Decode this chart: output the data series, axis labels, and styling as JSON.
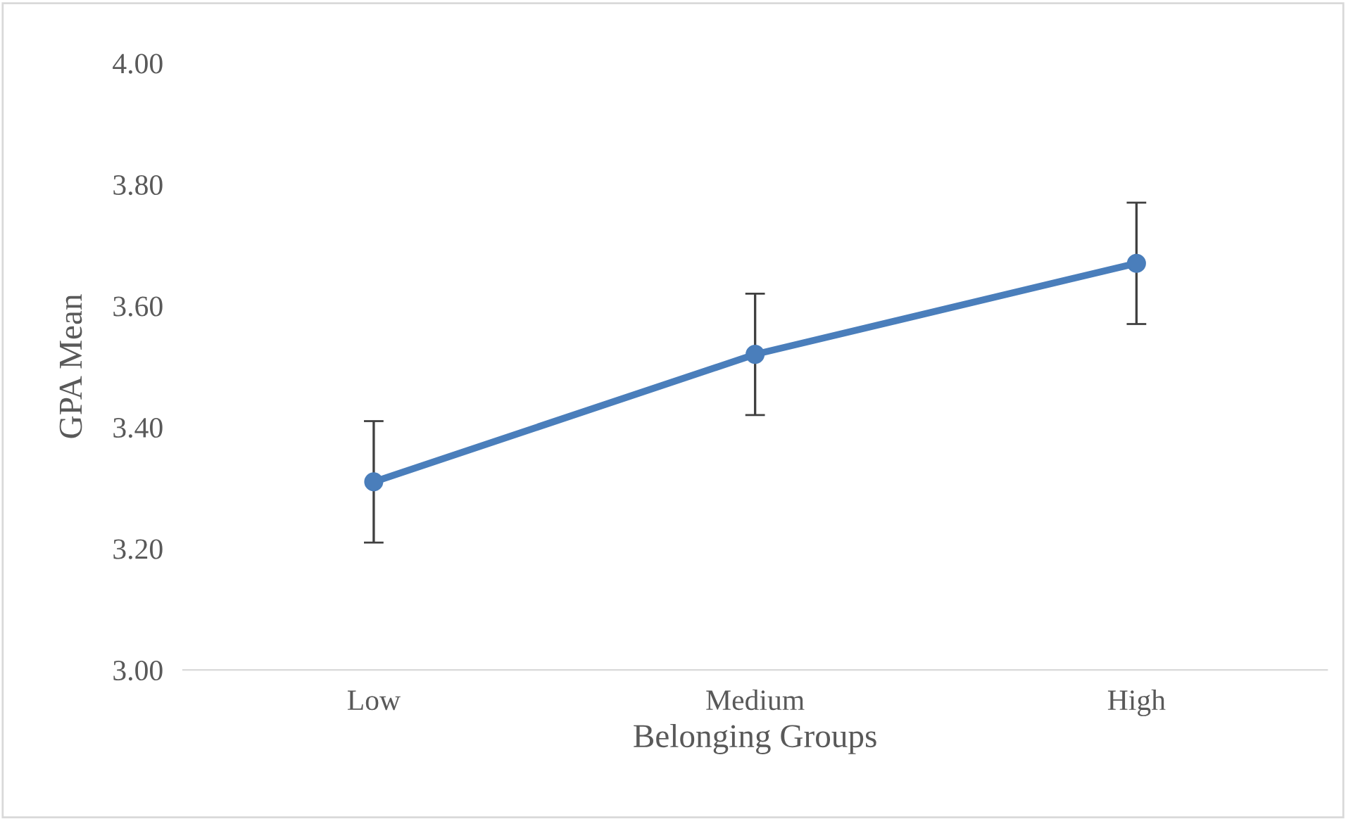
{
  "chart_data": {
    "type": "line",
    "xlabel": "Belonging Groups",
    "ylabel": "GPA Mean",
    "categories": [
      "Low",
      "Medium",
      "High"
    ],
    "series": [
      {
        "color": "#4a7ebb",
        "values": [
          3.31,
          3.52,
          3.67
        ],
        "errors": [
          0.1,
          0.1,
          0.1
        ]
      }
    ],
    "ylim": [
      3.0,
      4.0
    ],
    "yticks": [
      {
        "value": 3.0,
        "label": "3.00"
      },
      {
        "value": 3.2,
        "label": "3.20"
      },
      {
        "value": 3.4,
        "label": "3.40"
      },
      {
        "value": 3.6,
        "label": "3.60"
      },
      {
        "value": 3.8,
        "label": "3.80"
      },
      {
        "value": 4.0,
        "label": "4.00"
      }
    ],
    "grid": false,
    "marker": "circle",
    "line_style": "solid"
  }
}
